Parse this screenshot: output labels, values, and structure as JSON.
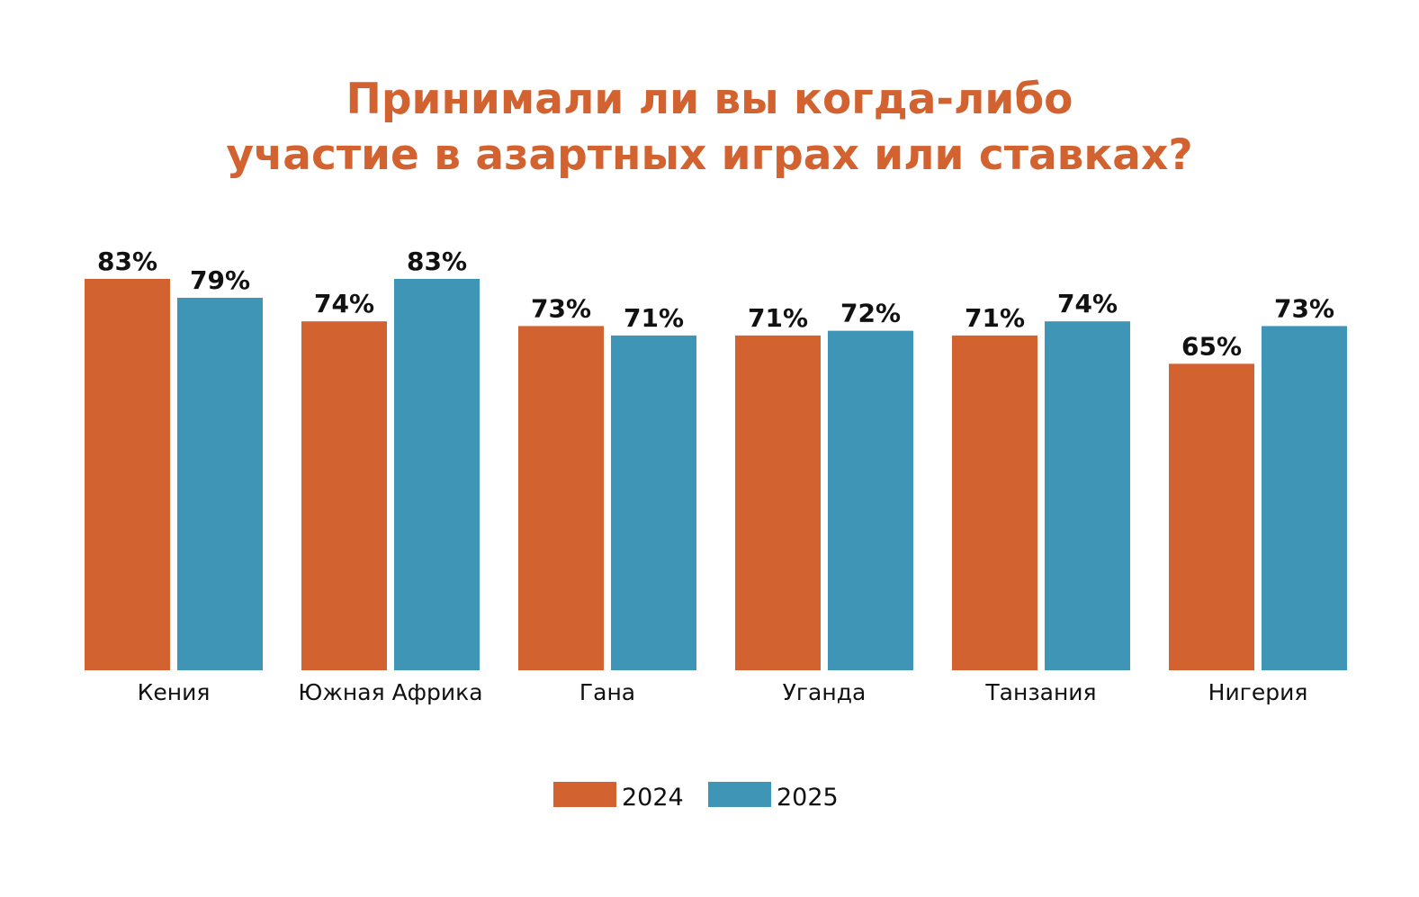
{
  "chart_data": {
    "type": "bar",
    "title_lines": [
      "Принимали ли вы когда-либо",
      "участие в азартных играх или ставках?"
    ],
    "categories": [
      "Кения",
      "Южная Африка",
      "Гана",
      "Уганда",
      "Танзания",
      "Нигерия"
    ],
    "series": [
      {
        "name": "2024",
        "color": "#d2622f",
        "values": [
          83,
          74,
          73,
          71,
          71,
          65
        ],
        "labels": [
          "83%",
          "74%",
          "73%",
          "71%",
          "71%",
          "65%"
        ]
      },
      {
        "name": "2025",
        "color": "#3e95b5",
        "values": [
          79,
          83,
          71,
          72,
          74,
          73
        ],
        "labels": [
          "79%",
          "83%",
          "71%",
          "72%",
          "74%",
          "73%"
        ]
      }
    ],
    "ylim": [
      0,
      83
    ],
    "grid": false,
    "legend_position": "bottom-center"
  }
}
